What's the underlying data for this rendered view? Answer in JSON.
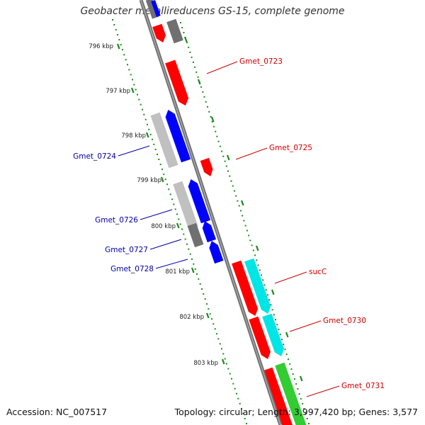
{
  "title": "Geobacter metallireducens GS-15, complete genome",
  "footer": {
    "accession": "Accession: NC_007517",
    "stats": "Topology: circular; Length: 3,997,420 bp; Genes: 3,577"
  },
  "colors": {
    "backbone": "#808080",
    "tick": "#1a8a1a",
    "forward_cds": "#ff0000",
    "reverse_cds": "#0000ff",
    "forward_label": "#cc0000",
    "reverse_label": "#0000aa",
    "cyan_track": "#00e5e5",
    "green_track": "#33cc33",
    "grey_light": "#c0c0c0",
    "grey_dark": "#707070"
  },
  "scale": {
    "unit": "kbp",
    "ticks": [
      {
        "label": "796 kbp"
      },
      {
        "label": "797 kbp"
      },
      {
        "label": "798 kbp"
      },
      {
        "label": "799 kbp"
      },
      {
        "label": "800 kbp"
      },
      {
        "label": "801 kbp"
      },
      {
        "label": "802 kbp"
      },
      {
        "label": "803 kbp"
      }
    ]
  },
  "genes": [
    {
      "name": "Gmet_0723",
      "strand": "forward"
    },
    {
      "name": "Gmet_0724",
      "strand": "reverse"
    },
    {
      "name": "Gmet_0725",
      "strand": "forward"
    },
    {
      "name": "Gmet_0726",
      "strand": "reverse"
    },
    {
      "name": "Gmet_0727",
      "strand": "reverse"
    },
    {
      "name": "Gmet_0728",
      "strand": "reverse"
    },
    {
      "name": "sucC",
      "strand": "forward"
    },
    {
      "name": "Gmet_0730",
      "strand": "forward"
    },
    {
      "name": "Gmet_0731",
      "strand": "forward"
    }
  ]
}
